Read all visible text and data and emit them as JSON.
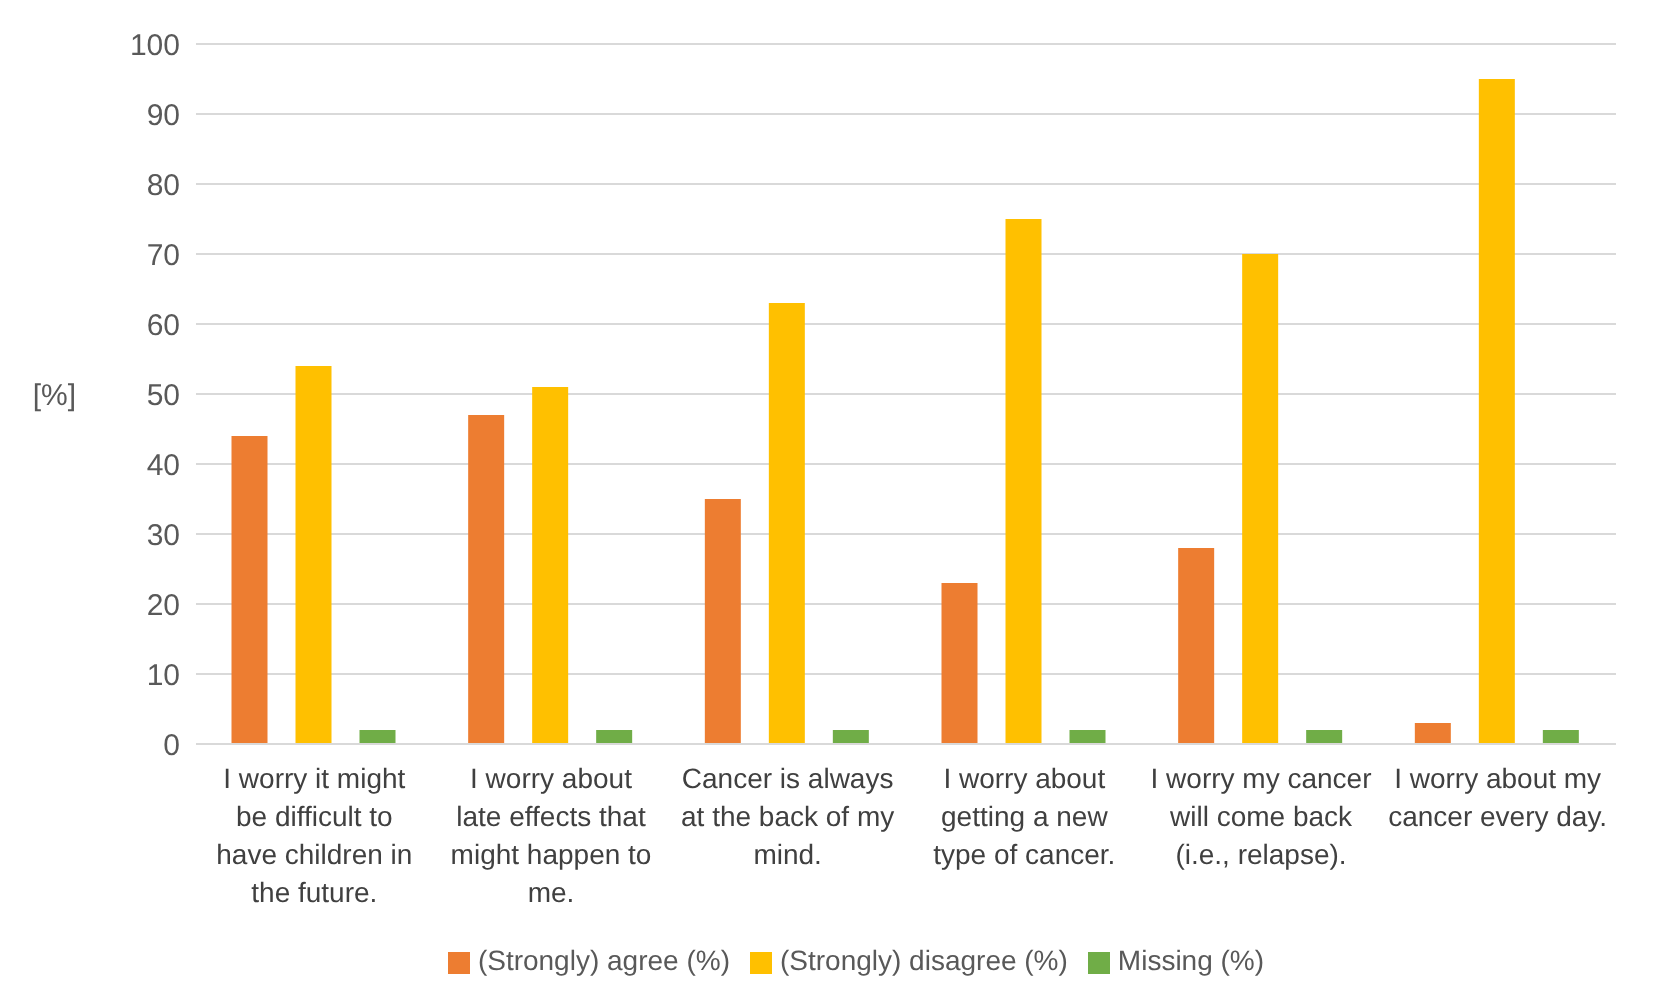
{
  "chart_data": {
    "type": "bar",
    "ylabel": "[%]",
    "categories": [
      "I worry it might be difficult to have children in the future.",
      "I worry about late effects that might happen to me.",
      "Cancer is always at the back of my mind.",
      "I worry about getting a new type of cancer.",
      "I worry my cancer will come back (i.e., relapse).",
      "I worry about my cancer every day."
    ],
    "series": [
      {
        "name": "(Strongly) agree (%)",
        "color": "#ed7d31",
        "values": [
          44,
          47,
          35,
          23,
          28,
          3
        ]
      },
      {
        "name": "(Strongly) disagree (%)",
        "color": "#ffc000",
        "values": [
          54,
          51,
          63,
          75,
          70,
          95
        ]
      },
      {
        "name": "Missing (%)",
        "color": "#70ad47",
        "values": [
          2,
          2,
          2,
          2,
          2,
          2
        ]
      }
    ],
    "ylim": [
      0,
      100
    ],
    "yticks": [
      0,
      10,
      20,
      30,
      40,
      50,
      60,
      70,
      80,
      90,
      100
    ],
    "grid": "y",
    "legend": "bottom"
  }
}
